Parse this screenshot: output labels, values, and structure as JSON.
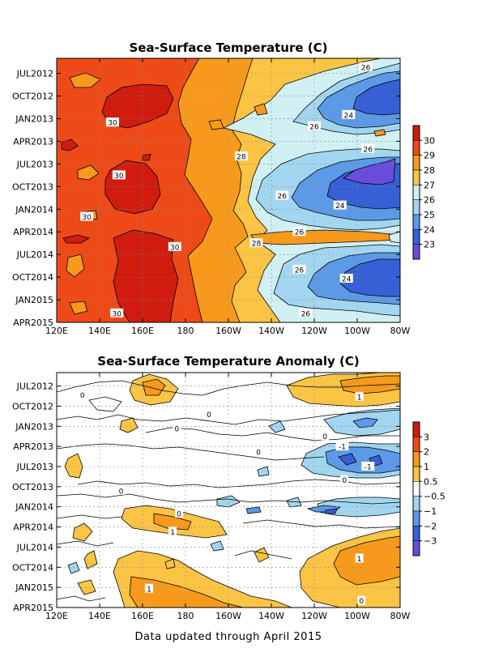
{
  "footer": "Data updated through April 2015",
  "chart_data": [
    {
      "type": "heatmap",
      "title": "Sea-Surface Temperature (C)",
      "xlabel": "",
      "ylabel": "",
      "x_ticks": [
        "120E",
        "140E",
        "160E",
        "180",
        "160W",
        "140W",
        "120W",
        "100W",
        "80W"
      ],
      "x_lon": [
        120,
        140,
        160,
        180,
        200,
        220,
        240,
        260,
        280
      ],
      "xlim": [
        120,
        280
      ],
      "y_ticks": [
        "JUL2012",
        "OCT2012",
        "JAN2013",
        "APR2013",
        "JUL2013",
        "OCT2013",
        "JAN2014",
        "APR2014",
        "JUL2014",
        "OCT2014",
        "JAN2015",
        "APR2015"
      ],
      "y_month": [
        6,
        9,
        12,
        15,
        18,
        21,
        24,
        27,
        30,
        33,
        36,
        39
      ],
      "ylim": [
        4,
        39
      ],
      "y_inverted": true,
      "grid": true,
      "colorbar": {
        "labels": [
          "30",
          "29",
          "28",
          "27",
          "26",
          "25",
          "24",
          "23"
        ],
        "colors": [
          "#d01c0e",
          "#ee4a18",
          "#f79a1c",
          "#fbc444",
          "#d0f0f4",
          "#a2d6f0",
          "#5c9ae8",
          "#3760d6",
          "#6a4cdc"
        ]
      },
      "contour_labels": [
        {
          "text": "26",
          "lon": 264,
          "month": 5.2
        },
        {
          "text": "24",
          "lon": 256,
          "month": 11.5
        },
        {
          "text": "30",
          "lon": 146,
          "month": 12.5
        },
        {
          "text": "26",
          "lon": 240,
          "month": 13.0
        },
        {
          "text": "26",
          "lon": 265,
          "month": 16.0
        },
        {
          "text": "28",
          "lon": 206,
          "month": 17.0
        },
        {
          "text": "30",
          "lon": 149,
          "month": 19.5
        },
        {
          "text": "26",
          "lon": 225,
          "month": 22.2
        },
        {
          "text": "24",
          "lon": 252,
          "month": 23.5
        },
        {
          "text": "30",
          "lon": 134,
          "month": 25.0
        },
        {
          "text": "26",
          "lon": 233,
          "month": 27.0
        },
        {
          "text": "28",
          "lon": 213,
          "month": 28.5
        },
        {
          "text": "30",
          "lon": 175,
          "month": 29.0
        },
        {
          "text": "26",
          "lon": 233,
          "month": 32.0
        },
        {
          "text": "24",
          "lon": 255,
          "month": 33.2
        },
        {
          "text": "30",
          "lon": 148,
          "month": 37.8
        },
        {
          "text": "26",
          "lon": 236,
          "month": 37.8
        }
      ]
    },
    {
      "type": "heatmap",
      "title": "Sea-Surface Temperature Anomaly (C)",
      "xlabel": "",
      "ylabel": "",
      "x_ticks": [
        "120E",
        "140E",
        "160E",
        "180",
        "160W",
        "140W",
        "120W",
        "100W",
        "80W"
      ],
      "x_lon": [
        120,
        140,
        160,
        180,
        200,
        220,
        240,
        260,
        280
      ],
      "xlim": [
        120,
        280
      ],
      "y_ticks": [
        "JUL2012",
        "OCT2012",
        "JAN2013",
        "APR2013",
        "JUL2013",
        "OCT2013",
        "JAN2014",
        "APR2014",
        "JUL2014",
        "OCT2014",
        "JAN2015",
        "APR2015"
      ],
      "y_month": [
        6,
        9,
        12,
        15,
        18,
        21,
        24,
        27,
        30,
        33,
        36,
        39
      ],
      "ylim": [
        4,
        39
      ],
      "y_inverted": true,
      "grid": true,
      "colorbar": {
        "labels": [
          "3",
          "2",
          "1",
          "0.5",
          "−0.5",
          "−1",
          "−2",
          "−3"
        ],
        "colors": [
          "#d01c0e",
          "#ee4a18",
          "#f79a1c",
          "#fbc444",
          "#ffffff",
          "#a2d6f0",
          "#5c9ae8",
          "#3760d6",
          "#6a4cdc"
        ]
      },
      "contour_labels": [
        {
          "text": "0",
          "lon": 132,
          "month": 7.3
        },
        {
          "text": "1",
          "lon": 261,
          "month": 7.6
        },
        {
          "text": "0",
          "lon": 191,
          "month": 10.2
        },
        {
          "text": "0",
          "lon": 176,
          "month": 12.3
        },
        {
          "text": "0",
          "lon": 245,
          "month": 13.5
        },
        {
          "text": "-1",
          "lon": 253,
          "month": 15.0
        },
        {
          "text": "0",
          "lon": 214,
          "month": 15.8
        },
        {
          "text": "-1",
          "lon": 265,
          "month": 18.0
        },
        {
          "text": "0",
          "lon": 254,
          "month": 20.0
        },
        {
          "text": "0",
          "lon": 150,
          "month": 21.6
        },
        {
          "text": "0",
          "lon": 177,
          "month": 25.0
        },
        {
          "text": "1",
          "lon": 174,
          "month": 27.7
        },
        {
          "text": "1",
          "lon": 261,
          "month": 31.7
        },
        {
          "text": "1",
          "lon": 163,
          "month": 36.2
        },
        {
          "text": "0",
          "lon": 262,
          "month": 38.0
        }
      ]
    }
  ]
}
